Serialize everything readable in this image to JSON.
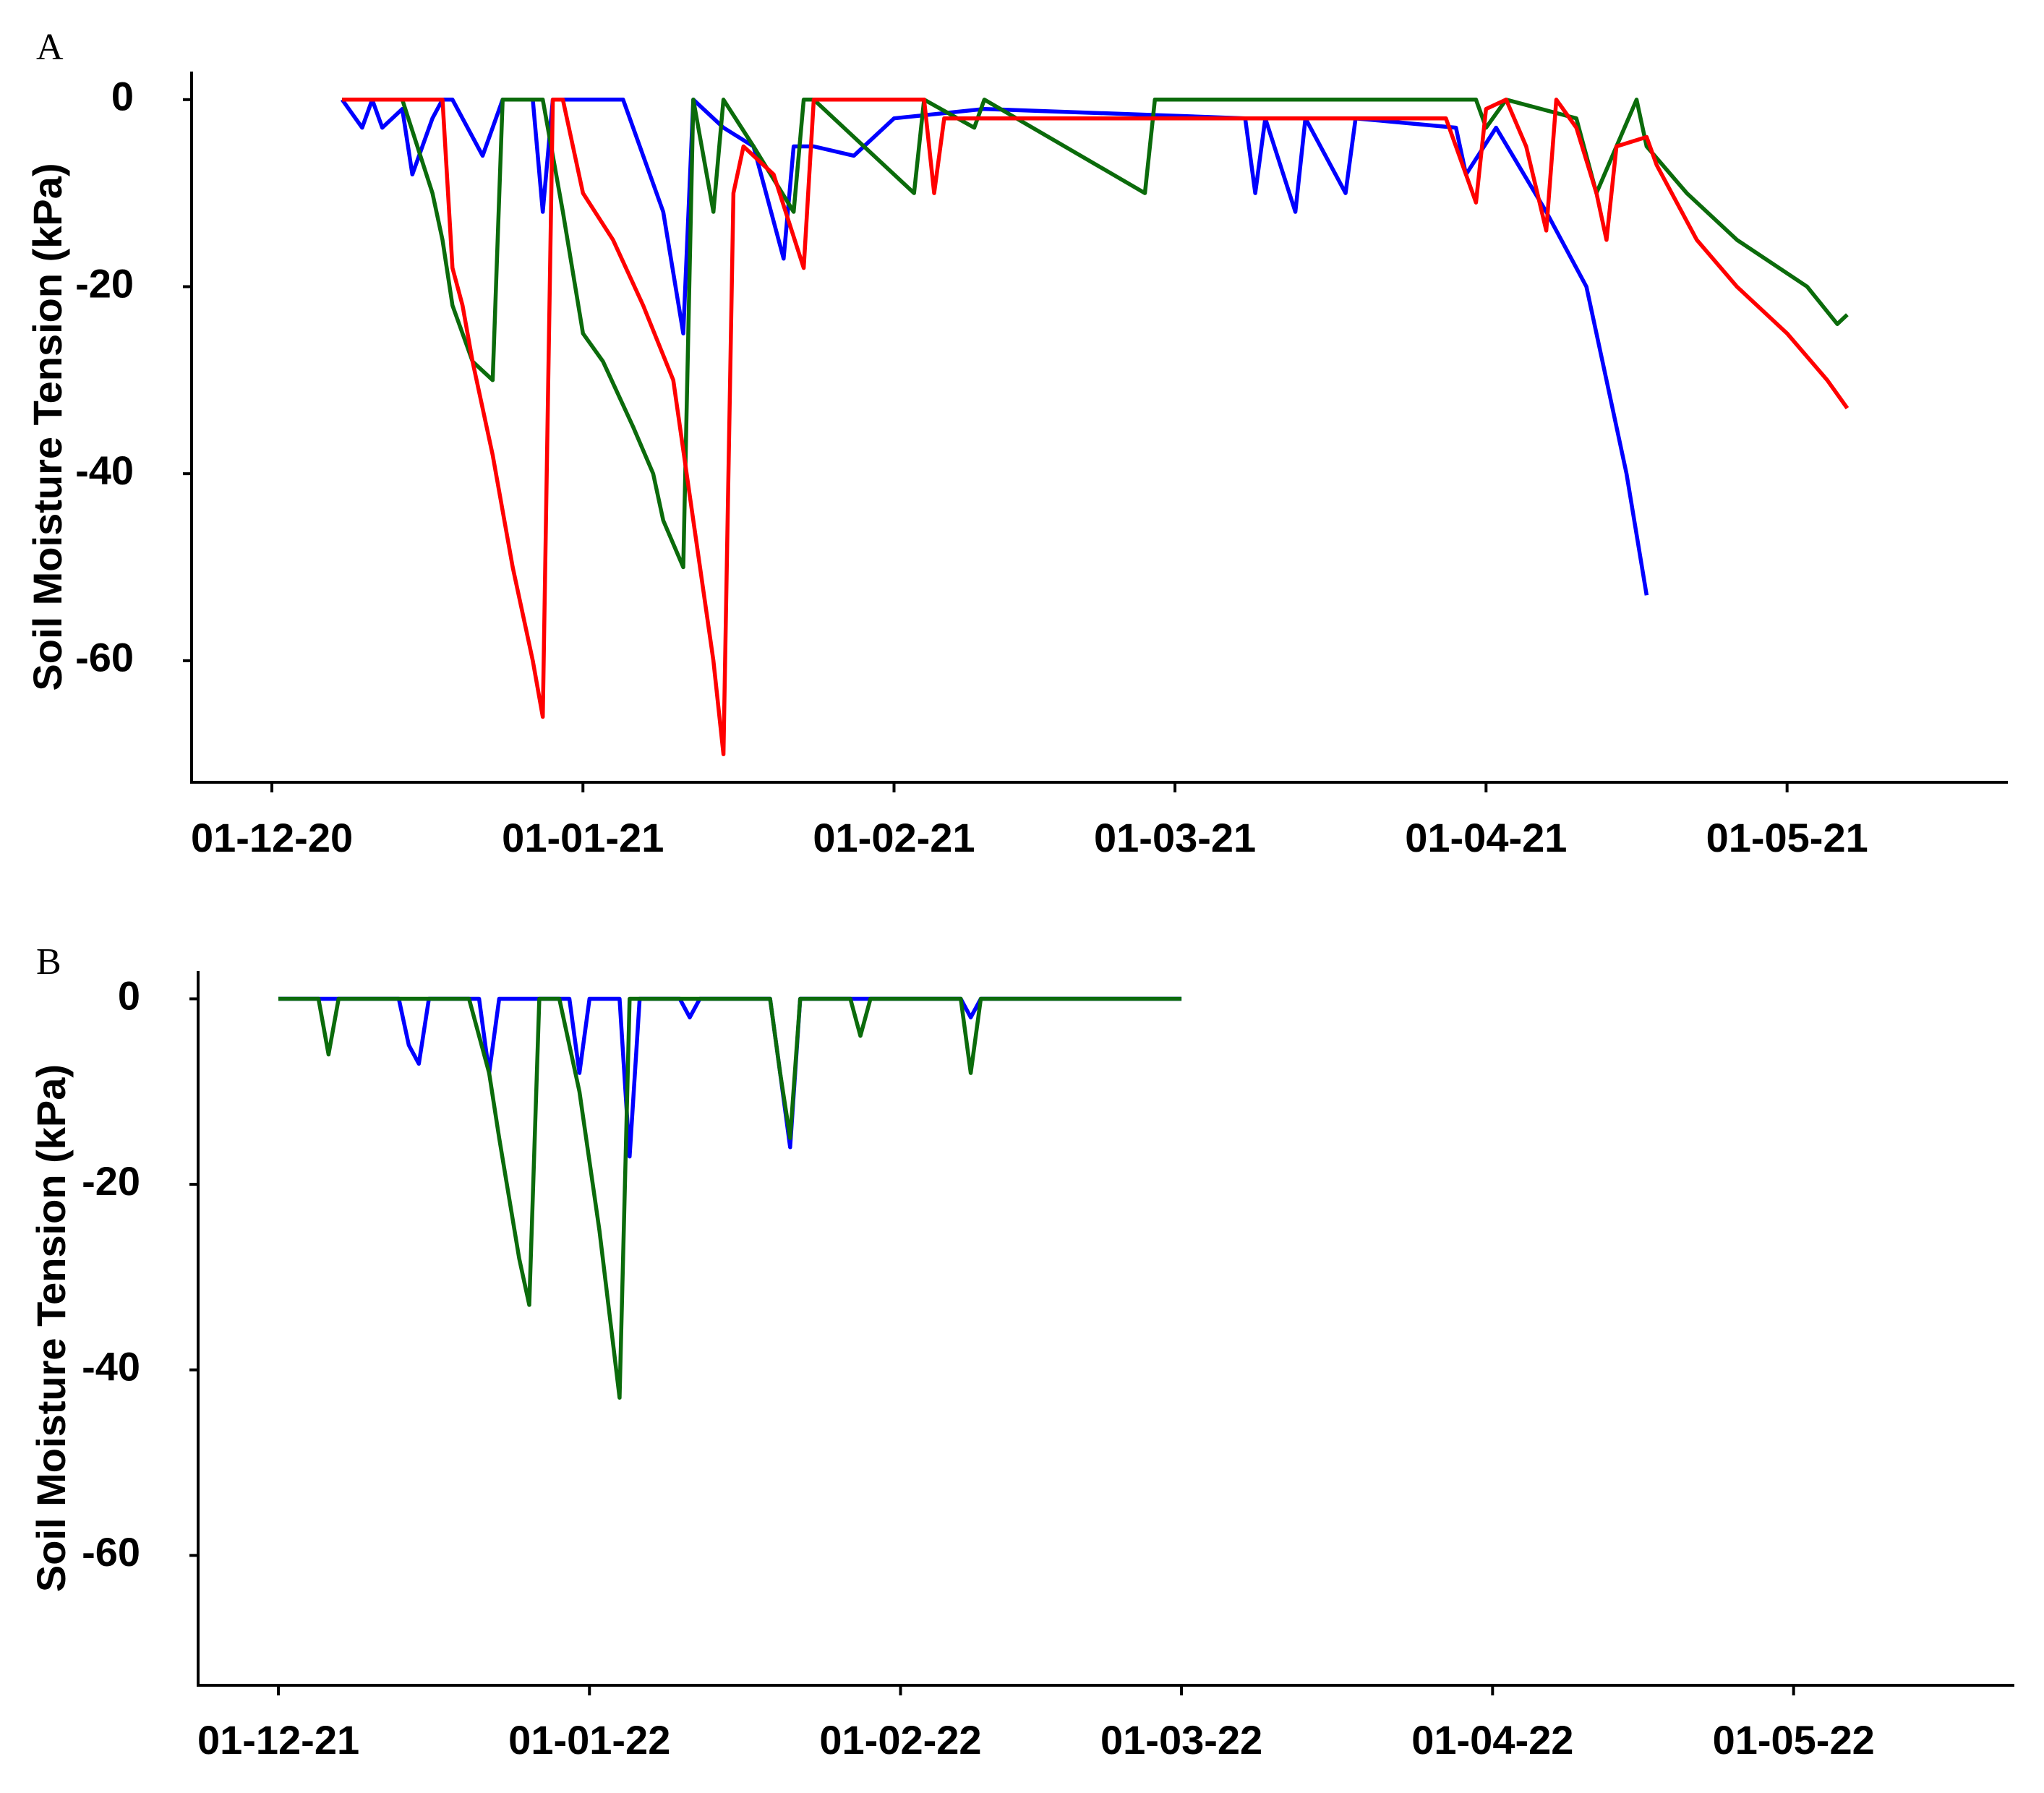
{
  "chart_data": [
    {
      "type": "line",
      "panel_label": "A",
      "y_label": "Soil Moisture Tension (kPa)",
      "xlim": [
        "2020-11-23",
        "2021-05-23"
      ],
      "xticks": [
        {
          "value": "2020-12-01",
          "label": "01-12-20"
        },
        {
          "value": "2021-01-01",
          "label": "01-01-21"
        },
        {
          "value": "2021-02-01",
          "label": "01-02-21"
        },
        {
          "value": "2021-03-01",
          "label": "01-03-21"
        },
        {
          "value": "2021-04-01",
          "label": "01-04-21"
        },
        {
          "value": "2021-05-01",
          "label": "01-05-21"
        }
      ],
      "ylim": [
        -73,
        3
      ],
      "yticks": [
        0,
        -20,
        -40,
        -60
      ],
      "series": [
        {
          "color": "#0000ff",
          "x": [
            "2020-12-08",
            "2020-12-10",
            "2020-12-11",
            "2020-12-12",
            "2020-12-14",
            "2020-12-15",
            "2020-12-17",
            "2020-12-18",
            "2020-12-19",
            "2020-12-22",
            "2020-12-24",
            "2020-12-27",
            "2020-12-28",
            "2020-12-29",
            "2021-01-05",
            "2021-01-09",
            "2021-01-11",
            "2021-01-12",
            "2021-01-15",
            "2021-01-18",
            "2021-01-21",
            "2021-01-22",
            "2021-01-24",
            "2021-01-28",
            "2021-02-01",
            "2021-02-10",
            "2021-03-08",
            "2021-03-09",
            "2021-03-10",
            "2021-03-13",
            "2021-03-14",
            "2021-03-18",
            "2021-03-19",
            "2021-03-29",
            "2021-03-30",
            "2021-04-02",
            "2021-04-07",
            "2021-04-11",
            "2021-04-13",
            "2021-04-15",
            "2021-04-17"
          ],
          "values": [
            0,
            -3,
            0,
            -3,
            -1,
            -8,
            -2,
            0,
            0,
            -6,
            0,
            0,
            -12,
            0,
            0,
            -12,
            -25,
            0,
            -3,
            -5,
            -17,
            -5,
            -5,
            -6,
            -2,
            -1,
            -2,
            -10,
            -2,
            -12,
            -2,
            -10,
            -2,
            -3,
            -8,
            -3,
            -12,
            -20,
            -30,
            -40,
            -53
          ]
        },
        {
          "color": "#0b6b0b",
          "x": [
            "2020-12-08",
            "2020-12-14",
            "2020-12-17",
            "2020-12-18",
            "2020-12-19",
            "2020-12-21",
            "2020-12-23",
            "2020-12-24",
            "2020-12-28",
            "2020-12-30",
            "2021-01-01",
            "2021-01-03",
            "2021-01-06",
            "2021-01-08",
            "2021-01-09",
            "2021-01-11",
            "2021-01-12",
            "2021-01-14",
            "2021-01-15",
            "2021-01-18",
            "2021-01-22",
            "2021-01-23",
            "2021-01-24",
            "2021-02-03",
            "2021-02-04",
            "2021-02-09",
            "2021-02-10",
            "2021-02-26",
            "2021-02-27",
            "2021-03-31",
            "2021-04-01",
            "2021-04-03",
            "2021-04-10",
            "2021-04-12",
            "2021-04-14",
            "2021-04-16",
            "2021-04-17",
            "2021-04-21",
            "2021-04-26",
            "2021-05-03",
            "2021-05-06",
            "2021-05-07"
          ],
          "values": [
            0,
            0,
            -10,
            -15,
            -22,
            -28,
            -30,
            0,
            0,
            -12,
            -25,
            -28,
            -35,
            -40,
            -45,
            -50,
            0,
            -12,
            0,
            -5,
            -12,
            0,
            0,
            -10,
            0,
            -3,
            0,
            -10,
            0,
            0,
            -3,
            0,
            -2,
            -10,
            -5,
            0,
            -5,
            -10,
            -15,
            -20,
            -24,
            -23
          ]
        },
        {
          "color": "#ff0000",
          "x": [
            "2020-12-08",
            "2020-12-18",
            "2020-12-19",
            "2020-12-20",
            "2020-12-21",
            "2020-12-23",
            "2020-12-25",
            "2020-12-27",
            "2020-12-28",
            "2020-12-29",
            "2020-12-30",
            "2021-01-01",
            "2021-01-04",
            "2021-01-07",
            "2021-01-10",
            "2021-01-12",
            "2021-01-14",
            "2021-01-15",
            "2021-01-16",
            "2021-01-17",
            "2021-01-20",
            "2021-01-23",
            "2021-01-24",
            "2021-02-04",
            "2021-02-05",
            "2021-02-06",
            "2021-02-23",
            "2021-03-28",
            "2021-03-31",
            "2021-04-01",
            "2021-04-03",
            "2021-04-05",
            "2021-04-07",
            "2021-04-08",
            "2021-04-10",
            "2021-04-12",
            "2021-04-13",
            "2021-04-14",
            "2021-04-17",
            "2021-04-18",
            "2021-04-22",
            "2021-04-26",
            "2021-05-01",
            "2021-05-05",
            "2021-05-07"
          ],
          "values": [
            0,
            0,
            -18,
            -22,
            -28,
            -38,
            -50,
            -60,
            -66,
            0,
            0,
            -10,
            -15,
            -22,
            -30,
            -45,
            -60,
            -70,
            -10,
            -5,
            -8,
            -18,
            0,
            0,
            -10,
            -2,
            -2,
            -2,
            -11,
            -1,
            0,
            -5,
            -14,
            0,
            -3,
            -10,
            -15,
            -5,
            -4,
            -7,
            -15,
            -20,
            -25,
            -30,
            -33
          ]
        }
      ]
    },
    {
      "type": "line",
      "panel_label": "B",
      "y_label": "Soil Moisture Tension (kPa)",
      "xlim": [
        "2021-11-23",
        "2022-05-23"
      ],
      "xticks": [
        {
          "value": "2021-12-01",
          "label": "01-12-21"
        },
        {
          "value": "2022-01-01",
          "label": "01-01-22"
        },
        {
          "value": "2022-02-01",
          "label": "01-02-22"
        },
        {
          "value": "2022-03-01",
          "label": "01-03-22"
        },
        {
          "value": "2022-04-01",
          "label": "01-04-22"
        },
        {
          "value": "2022-05-01",
          "label": "01-05-22"
        }
      ],
      "ylim": [
        -74,
        3
      ],
      "yticks": [
        0,
        -20,
        -40,
        -60
      ],
      "series": [
        {
          "color": "#0000ff",
          "x": [
            "2021-12-01",
            "2021-12-13",
            "2021-12-14",
            "2021-12-15",
            "2021-12-16",
            "2021-12-21",
            "2021-12-22",
            "2021-12-23",
            "2021-12-30",
            "2021-12-31",
            "2022-01-01",
            "2022-01-04",
            "2022-01-05",
            "2022-01-06",
            "2022-01-10",
            "2022-01-11",
            "2022-01-12",
            "2022-01-19",
            "2022-01-20",
            "2022-01-21",
            "2022-01-22",
            "2022-02-07",
            "2022-02-08",
            "2022-02-09",
            "2022-03-01"
          ],
          "values": [
            0,
            0,
            -5,
            -7,
            0,
            0,
            -8,
            0,
            0,
            -8,
            0,
            0,
            -17,
            0,
            0,
            -2,
            0,
            0,
            -8,
            -16,
            0,
            0,
            -2,
            0,
            0
          ]
        },
        {
          "color": "#0b6b0b",
          "x": [
            "2021-12-01",
            "2021-12-05",
            "2021-12-06",
            "2021-12-07",
            "2021-12-20",
            "2021-12-22",
            "2021-12-23",
            "2021-12-25",
            "2021-12-26",
            "2021-12-27",
            "2021-12-29",
            "2021-12-31",
            "2022-01-02",
            "2022-01-04",
            "2022-01-05",
            "2022-01-19",
            "2022-01-20",
            "2022-01-21",
            "2022-01-22",
            "2022-01-27",
            "2022-01-28",
            "2022-01-29",
            "2022-02-07",
            "2022-02-08",
            "2022-02-09",
            "2022-03-01"
          ],
          "values": [
            0,
            0,
            -6,
            0,
            0,
            -8,
            -15,
            -28,
            -33,
            0,
            0,
            -10,
            -25,
            -43,
            0,
            0,
            -8,
            -15,
            0,
            0,
            -4,
            0,
            0,
            -8,
            0,
            0
          ]
        }
      ]
    }
  ]
}
